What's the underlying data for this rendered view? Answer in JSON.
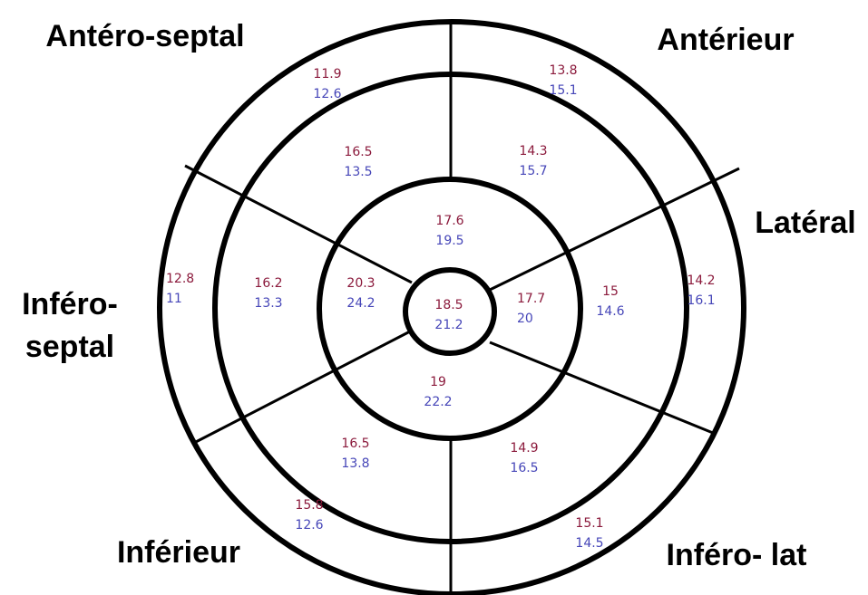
{
  "regions": [
    {
      "lines": [
        "Antéro-septal"
      ]
    },
    {
      "lines": [
        "Antérieur"
      ]
    },
    {
      "lines": [
        "Latéral"
      ]
    },
    {
      "lines": [
        "Inféro-",
        "septal"
      ]
    },
    {
      "lines": [
        "Inférieur"
      ]
    },
    {
      "lines": [
        "Inféro- lat"
      ]
    }
  ],
  "segments": [
    {
      "top": 11.9,
      "bottom": 12.6
    },
    {
      "top": 13.8,
      "bottom": 15.1
    },
    {
      "top": 14.2,
      "bottom": 16.1
    },
    {
      "top": 15.1,
      "bottom": 14.5
    },
    {
      "top": 15.8,
      "bottom": 12.6
    },
    {
      "top": 12.8,
      "bottom": 11
    },
    {
      "top": 16.5,
      "bottom": 13.5
    },
    {
      "top": 14.3,
      "bottom": 15.7
    },
    {
      "top": 15,
      "bottom": 14.6
    },
    {
      "top": 14.9,
      "bottom": 16.5
    },
    {
      "top": 16.5,
      "bottom": 13.8
    },
    {
      "top": 16.2,
      "bottom": 13.3
    },
    {
      "top": 17.6,
      "bottom": 19.5
    },
    {
      "top": 17.7,
      "bottom": 20
    },
    {
      "top": 19,
      "bottom": 22.2
    },
    {
      "top": 20.3,
      "bottom": 24.2
    },
    {
      "top": 18.5,
      "bottom": 21.2
    }
  ]
}
